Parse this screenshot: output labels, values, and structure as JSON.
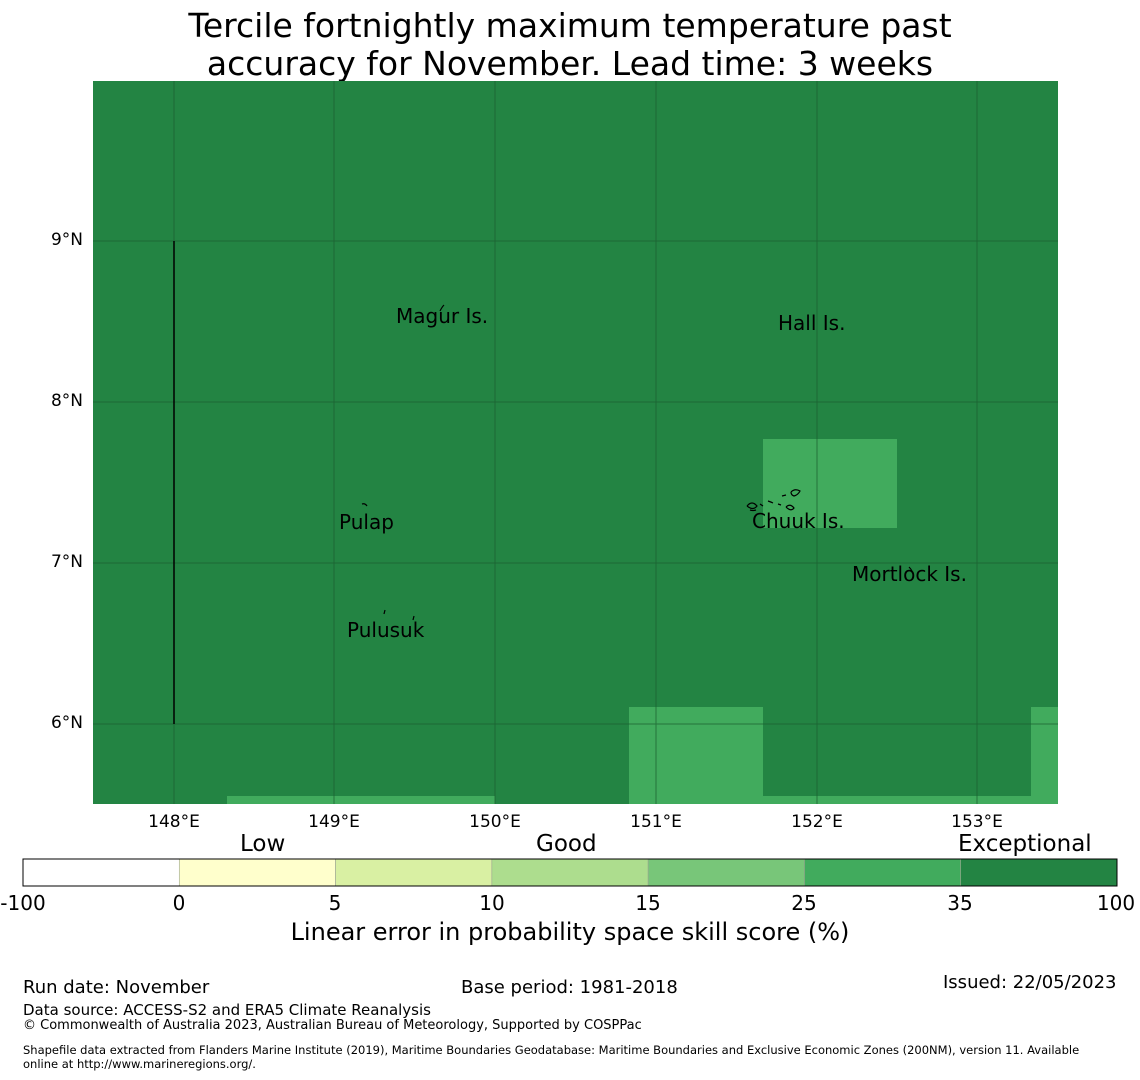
{
  "title": {
    "line1": "Tercile fortnightly maximum temperature past",
    "line2": "accuracy for November. Lead time: 3 weeks"
  },
  "map": {
    "colors": {
      "exceptional": "#238443",
      "good_high": "#41ab5d",
      "gridline": "#1a5c2e"
    },
    "lat_labels": [
      "9°N",
      "8°N",
      "7°N",
      "6°N"
    ],
    "lon_labels": [
      "148°E",
      "149°E",
      "150°E",
      "151°E",
      "152°E",
      "153°E"
    ],
    "places": [
      "Magur Is.",
      "Hall Is.",
      "Pulap",
      "Chuuk Is.",
      "Mortlock Is.",
      "Pulusuk"
    ]
  },
  "colorbar": {
    "categories": [
      "Low",
      "Good",
      "Exceptional"
    ],
    "ticks": [
      "-100",
      "0",
      "5",
      "10",
      "15",
      "25",
      "35",
      "100"
    ],
    "colors": [
      "#ffffff",
      "#ffffcc",
      "#d9f0a3",
      "#addd8e",
      "#78c679",
      "#41ab5d",
      "#238443"
    ],
    "label": "Linear error in probability space skill score (%)"
  },
  "footer": {
    "run_date": "Run date: November",
    "base_period": "Base period: 1981-2018",
    "issued": "Issued: 22/05/2023",
    "data_source": "Data source: ACCESS-S2 and ERA5 Climate Reanalysis",
    "copyright": "© Commonwealth of Australia 2023, Australian Bureau of Meteorology, Supported by COSPPac",
    "shapefile_line1": "Shapefile data extracted from Flanders Marine Institute (2019), Maritime Boundaries Geodatabase: Maritime Boundaries and Exclusive Economic Zones (200NM), version 11. Available",
    "shapefile_line2": "online at http://www.marineregions.org/."
  }
}
